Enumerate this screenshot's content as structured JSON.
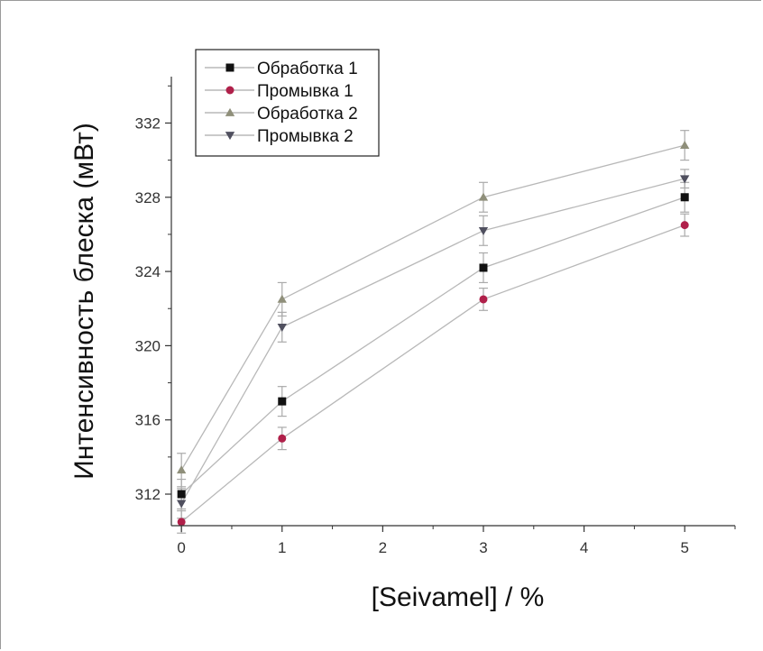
{
  "chart_data": {
    "type": "scatter",
    "title": "",
    "xlabel": "[Seivamel] / %",
    "ylabel": "Интенсивность блеска (мВт)",
    "xlim": [
      -0.1,
      5.5
    ],
    "ylim": [
      310.3,
      334.5
    ],
    "x_ticks": [
      0,
      1,
      2,
      3,
      4,
      5
    ],
    "y_ticks": [
      312,
      316,
      320,
      324,
      328,
      332
    ],
    "grid": false,
    "legend_position": "top-left",
    "x": [
      0,
      1,
      3,
      5
    ],
    "series": [
      {
        "name": "Обработка 1",
        "marker": "square",
        "color": "#111111",
        "values": [
          312.0,
          317.0,
          324.2,
          328.0
        ],
        "errors": [
          0.8,
          0.8,
          0.8,
          0.8
        ]
      },
      {
        "name": "Промывка 1",
        "marker": "circle",
        "color": "#b0204a",
        "values": [
          310.5,
          315.0,
          322.5,
          326.5
        ],
        "errors": [
          0.6,
          0.6,
          0.6,
          0.6
        ]
      },
      {
        "name": "Обработка 2",
        "marker": "triangle-up",
        "color": "#8f8f7a",
        "values": [
          313.3,
          322.5,
          328.0,
          330.8
        ],
        "errors": [
          0.9,
          0.9,
          0.8,
          0.8
        ]
      },
      {
        "name": "Промывка 2",
        "marker": "triangle-down",
        "color": "#50505f",
        "values": [
          311.5,
          321.0,
          326.2,
          329.0
        ],
        "errors": [
          0.8,
          0.8,
          0.8,
          0.5
        ]
      }
    ]
  }
}
